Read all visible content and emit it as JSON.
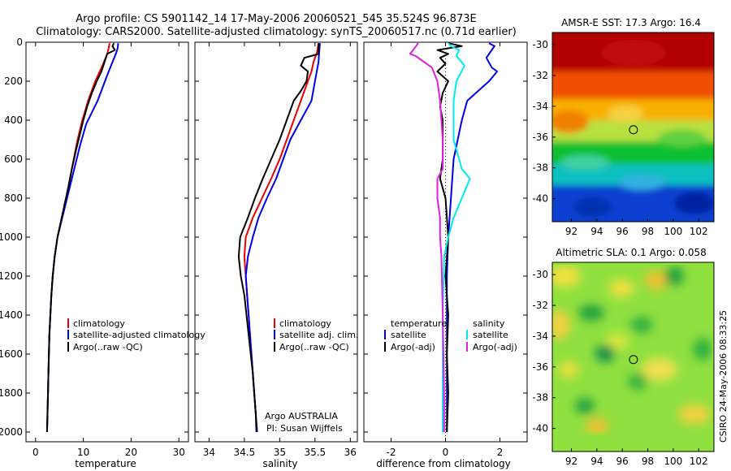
{
  "figure": {
    "title_line1": "Argo profile: CS 5901142_14 17-May-2006 20060521_545 35.524S 96.873E",
    "title_line2": "Climatology: CARS2000. Satellite-adjusted climatology: synTS_20060517.nc (0.71d earlier)",
    "credit": "Argo AUSTRALIA",
    "pi": "PI: Susan Wijffels",
    "side_label": "CSIRO 24-May-2006 08:33:25"
  },
  "colors": {
    "climatology": "#ee0000",
    "satellite": "#0000ee",
    "argo": "#000000",
    "sat_salt": "#00e8f0",
    "argo_salt": "#e020e0"
  },
  "chart_data": [
    {
      "type": "line",
      "xlabel": "temperature",
      "ylabel": "",
      "xlim": [
        -2,
        32
      ],
      "ylim": [
        2050,
        0
      ],
      "xticks": [
        0,
        10,
        20,
        30
      ],
      "yticks": [
        0,
        200,
        400,
        600,
        800,
        1000,
        1200,
        1400,
        1600,
        1800,
        2000
      ],
      "legend": [
        "climatology",
        "satellite-adjusted climatology",
        "Argo(..raw -QC)"
      ],
      "series": [
        {
          "name": "climatology",
          "color": "climatology",
          "points": [
            [
              15.5,
              5
            ],
            [
              15.3,
              30
            ],
            [
              15.0,
              60
            ],
            [
              14.0,
              120
            ],
            [
              12.5,
              200
            ],
            [
              11.0,
              300
            ],
            [
              9.8,
              400
            ],
            [
              8.8,
              500
            ],
            [
              8.0,
              600
            ],
            [
              7.2,
              700
            ],
            [
              6.4,
              800
            ],
            [
              5.5,
              900
            ],
            [
              4.6,
              1000
            ],
            [
              4.0,
              1100
            ],
            [
              3.6,
              1200
            ],
            [
              3.3,
              1300
            ],
            [
              3.1,
              1400
            ],
            [
              2.9,
              1500
            ],
            [
              2.8,
              1600
            ],
            [
              2.7,
              1700
            ],
            [
              2.6,
              1800
            ],
            [
              2.5,
              1900
            ],
            [
              2.4,
              2000
            ]
          ]
        },
        {
          "name": "satellite-adjusted climatology",
          "color": "satellite",
          "points": [
            [
              17.3,
              5
            ],
            [
              17.2,
              30
            ],
            [
              16.8,
              60
            ],
            [
              15.3,
              150
            ],
            [
              13.0,
              300
            ],
            [
              10.6,
              420
            ],
            [
              9.3,
              530
            ],
            [
              8.3,
              630
            ],
            [
              7.3,
              730
            ],
            [
              6.4,
              820
            ],
            [
              5.4,
              920
            ],
            [
              4.6,
              1000
            ],
            [
              4.0,
              1100
            ],
            [
              3.6,
              1200
            ],
            [
              3.3,
              1300
            ],
            [
              3.1,
              1400
            ],
            [
              2.9,
              1500
            ],
            [
              2.8,
              1600
            ],
            [
              2.7,
              1700
            ],
            [
              2.6,
              1800
            ],
            [
              2.5,
              1900
            ],
            [
              2.4,
              2000
            ]
          ]
        },
        {
          "name": "Argo(..raw -QC)",
          "color": "argo",
          "points": [
            [
              16.4,
              5
            ],
            [
              16.1,
              20
            ],
            [
              16.6,
              40
            ],
            [
              15.0,
              60
            ],
            [
              14.6,
              90
            ],
            [
              13.8,
              150
            ],
            [
              12.8,
              200
            ],
            [
              11.8,
              260
            ],
            [
              10.8,
              330
            ],
            [
              10.0,
              400
            ],
            [
              9.2,
              480
            ],
            [
              8.4,
              560
            ],
            [
              7.6,
              650
            ],
            [
              6.9,
              740
            ],
            [
              6.1,
              830
            ],
            [
              5.4,
              910
            ],
            [
              4.6,
              1000
            ],
            [
              4.0,
              1100
            ],
            [
              3.6,
              1200
            ],
            [
              3.3,
              1300
            ],
            [
              3.1,
              1400
            ],
            [
              2.9,
              1500
            ],
            [
              2.8,
              1600
            ],
            [
              2.7,
              1700
            ],
            [
              2.6,
              1800
            ],
            [
              2.5,
              1900
            ],
            [
              2.4,
              2000
            ]
          ]
        }
      ]
    },
    {
      "type": "line",
      "xlabel": "salinity",
      "ylabel": "",
      "xlim": [
        33.8,
        36.1
      ],
      "ylim": [
        2050,
        0
      ],
      "xticks": [
        34,
        34.5,
        35,
        35.5,
        36
      ],
      "legend": [
        "climatology",
        "satellite adj. clim.",
        "Argo(..raw -QC)"
      ],
      "series": [
        {
          "name": "climatology",
          "color": "climatology",
          "points": [
            [
              35.55,
              5
            ],
            [
              35.53,
              50
            ],
            [
              35.48,
              100
            ],
            [
              35.45,
              150
            ],
            [
              35.4,
              200
            ],
            [
              35.3,
              300
            ],
            [
              35.2,
              400
            ],
            [
              35.1,
              500
            ],
            [
              35.0,
              600
            ],
            [
              34.88,
              700
            ],
            [
              34.75,
              800
            ],
            [
              34.62,
              900
            ],
            [
              34.52,
              1000
            ],
            [
              34.5,
              1100
            ],
            [
              34.52,
              1200
            ],
            [
              34.54,
              1300
            ],
            [
              34.56,
              1400
            ],
            [
              34.58,
              1500
            ],
            [
              34.6,
              1600
            ],
            [
              34.62,
              1700
            ],
            [
              34.64,
              1800
            ],
            [
              34.66,
              1900
            ],
            [
              34.68,
              2000
            ]
          ]
        },
        {
          "name": "satellite adj. clim.",
          "color": "satellite",
          "points": [
            [
              35.57,
              5
            ],
            [
              35.56,
              50
            ],
            [
              35.55,
              100
            ],
            [
              35.5,
              200
            ],
            [
              35.45,
              300
            ],
            [
              35.3,
              400
            ],
            [
              35.15,
              500
            ],
            [
              35.05,
              600
            ],
            [
              34.95,
              700
            ],
            [
              34.82,
              800
            ],
            [
              34.7,
              900
            ],
            [
              34.62,
              1000
            ],
            [
              34.55,
              1100
            ],
            [
              34.52,
              1200
            ],
            [
              34.54,
              1300
            ],
            [
              34.56,
              1400
            ],
            [
              34.58,
              1500
            ],
            [
              34.6,
              1600
            ],
            [
              34.62,
              1700
            ],
            [
              34.64,
              1800
            ],
            [
              34.66,
              1900
            ],
            [
              34.68,
              2000
            ]
          ]
        },
        {
          "name": "Argo(..raw -QC)",
          "color": "argo",
          "points": [
            [
              35.55,
              5
            ],
            [
              35.55,
              60
            ],
            [
              35.35,
              80
            ],
            [
              35.3,
              120
            ],
            [
              35.4,
              150
            ],
            [
              35.38,
              200
            ],
            [
              35.3,
              250
            ],
            [
              35.2,
              300
            ],
            [
              35.1,
              400
            ],
            [
              35.0,
              500
            ],
            [
              34.88,
              600
            ],
            [
              34.76,
              700
            ],
            [
              34.65,
              800
            ],
            [
              34.55,
              900
            ],
            [
              34.44,
              1000
            ],
            [
              34.42,
              1100
            ],
            [
              34.45,
              1200
            ],
            [
              34.5,
              1300
            ],
            [
              34.53,
              1400
            ],
            [
              34.56,
              1500
            ],
            [
              34.59,
              1600
            ],
            [
              34.62,
              1700
            ],
            [
              34.64,
              1800
            ],
            [
              34.66,
              1900
            ],
            [
              34.67,
              2000
            ]
          ]
        }
      ]
    },
    {
      "type": "line",
      "xlabel": "difference from climatology",
      "ylabel": "",
      "xlim": [
        -3,
        3
      ],
      "ylim": [
        2050,
        0
      ],
      "xticks": [
        -2,
        0,
        2
      ],
      "legend_titles": [
        "temperature",
        "salinity"
      ],
      "legend": [
        "satellite",
        "Argo(-adj)",
        "satellite",
        "Argo(-adj)"
      ],
      "series": [
        {
          "name": "temperature satellite",
          "color": "satellite",
          "points": [
            [
              1.6,
              5
            ],
            [
              1.8,
              20
            ],
            [
              1.7,
              40
            ],
            [
              1.5,
              80
            ],
            [
              1.7,
              130
            ],
            [
              1.9,
              150
            ],
            [
              1.6,
              200
            ],
            [
              0.8,
              300
            ],
            [
              0.6,
              400
            ],
            [
              0.3,
              600
            ],
            [
              0.2,
              800
            ],
            [
              0.1,
              1000
            ],
            [
              0.05,
              1200
            ],
            [
              0.05,
              1400
            ],
            [
              0.05,
              1600
            ],
            [
              0.05,
              1800
            ],
            [
              0.05,
              2000
            ]
          ]
        },
        {
          "name": "temperature Argo(-adj)",
          "color": "argo",
          "points": [
            [
              0.1,
              5
            ],
            [
              0.6,
              20
            ],
            [
              -0.3,
              40
            ],
            [
              0.1,
              60
            ],
            [
              -0.2,
              80
            ],
            [
              0.0,
              110
            ],
            [
              -0.3,
              150
            ],
            [
              0.1,
              200
            ],
            [
              -0.1,
              260
            ],
            [
              -0.2,
              330
            ],
            [
              -0.1,
              400
            ],
            [
              -0.1,
              600
            ],
            [
              -0.2,
              700
            ],
            [
              0.0,
              800
            ],
            [
              0.05,
              900
            ],
            [
              0.1,
              1000
            ],
            [
              0.0,
              1200
            ],
            [
              0.1,
              1400
            ],
            [
              0.05,
              1600
            ],
            [
              0.1,
              1800
            ],
            [
              0.05,
              2000
            ]
          ]
        },
        {
          "name": "salinity satellite",
          "color": "sat_salt",
          "points": [
            [
              0.1,
              5
            ],
            [
              0.2,
              20
            ],
            [
              0.5,
              40
            ],
            [
              0.4,
              70
            ],
            [
              0.7,
              120
            ],
            [
              0.4,
              200
            ],
            [
              0.3,
              300
            ],
            [
              0.3,
              500
            ],
            [
              0.6,
              650
            ],
            [
              0.9,
              700
            ],
            [
              0.6,
              800
            ],
            [
              0.3,
              900
            ],
            [
              0.1,
              1000
            ],
            [
              -0.05,
              1100
            ],
            [
              -0.1,
              1400
            ],
            [
              -0.1,
              1800
            ],
            [
              -0.1,
              2000
            ]
          ]
        },
        {
          "name": "salinity Argo(-adj)",
          "color": "argo_salt",
          "points": [
            [
              -1.0,
              5
            ],
            [
              -1.3,
              60
            ],
            [
              -1.1,
              70
            ],
            [
              -0.8,
              100
            ],
            [
              -0.5,
              130
            ],
            [
              -0.3,
              200
            ],
            [
              -0.2,
              300
            ],
            [
              -0.1,
              500
            ],
            [
              -0.1,
              600
            ],
            [
              -0.1,
              650
            ],
            [
              -0.3,
              700
            ],
            [
              -0.3,
              800
            ],
            [
              -0.2,
              900
            ],
            [
              -0.2,
              1000
            ],
            [
              -0.15,
              1100
            ],
            [
              -0.1,
              1400
            ],
            [
              -0.05,
              1800
            ],
            [
              -0.05,
              2000
            ]
          ]
        }
      ]
    },
    {
      "type": "heatmap",
      "title": "AMSR-E SST: 17.3 Argo: 16.4",
      "xlim": [
        90.5,
        103.2
      ],
      "ylim": [
        -41.5,
        -29.2
      ],
      "xticks": [
        92,
        94,
        96,
        98,
        100,
        102
      ],
      "yticks": [
        -30,
        -32,
        -34,
        -36,
        -38,
        -40
      ],
      "marker": [
        96.873,
        -35.524
      ]
    },
    {
      "type": "heatmap",
      "title": "Altimetric SLA: 0.1 Argo: 0.058",
      "xlim": [
        90.5,
        103.2
      ],
      "ylim": [
        -41.5,
        -29.2
      ],
      "xticks": [
        92,
        94,
        96,
        98,
        100,
        102
      ],
      "yticks": [
        -30,
        -32,
        -34,
        -36,
        -38,
        -40
      ],
      "marker": [
        96.873,
        -35.524
      ]
    }
  ]
}
